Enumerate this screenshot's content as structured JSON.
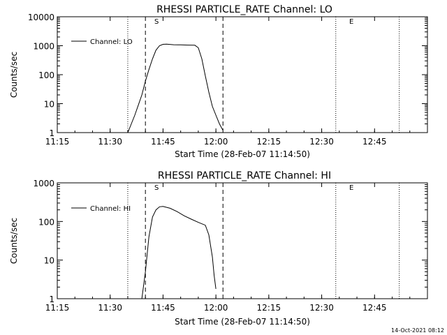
{
  "stamp": "14-Oct-2021 08:12",
  "chart_data": [
    {
      "type": "line",
      "title": "RHESSI PARTICLE_RATE Channel: LO",
      "xlabel": "Start Time (28-Feb-07 11:14:50)",
      "ylabel": "Counts/sec",
      "yscale": "log",
      "ylim": [
        1,
        10000
      ],
      "xlim": [
        "11:15",
        "13:00"
      ],
      "x_ticks": [
        "11:15",
        "11:30",
        "11:45",
        "12:00",
        "12:15",
        "12:30",
        "12:45"
      ],
      "y_ticks": [
        "1",
        "10",
        "100",
        "1000",
        "10000"
      ],
      "legend": {
        "label": "Channel: LO",
        "position": "top-left"
      },
      "start_marker": {
        "label": "S",
        "time": "11:40"
      },
      "end_marker": {
        "label": "E",
        "time": "12:34"
      },
      "dashed_lines": [
        "11:40",
        "12:02"
      ],
      "dotted_lines": [
        "11:35",
        "12:34",
        "12:52"
      ],
      "series": [
        {
          "name": "Channel: LO",
          "points": [
            [
              "11:35",
              1
            ],
            [
              "11:36",
              2
            ],
            [
              "11:37",
              4
            ],
            [
              "11:38",
              9
            ],
            [
              "11:39",
              20
            ],
            [
              "11:40",
              60
            ],
            [
              "11:41",
              150
            ],
            [
              "11:42",
              350
            ],
            [
              "11:43",
              700
            ],
            [
              "11:44",
              1000
            ],
            [
              "11:45",
              1120
            ],
            [
              "11:46",
              1130
            ],
            [
              "11:48",
              1080
            ],
            [
              "11:50",
              1070
            ],
            [
              "11:52",
              1050
            ],
            [
              "11:54",
              1040
            ],
            [
              "11:55",
              850
            ],
            [
              "11:56",
              350
            ],
            [
              "11:57",
              90
            ],
            [
              "11:58",
              25
            ],
            [
              "11:59",
              8
            ],
            [
              "12:00",
              4
            ],
            [
              "12:01",
              2
            ],
            [
              "12:02",
              1.2
            ]
          ]
        }
      ]
    },
    {
      "type": "line",
      "title": "RHESSI PARTICLE_RATE Channel: HI",
      "xlabel": "Start Time (28-Feb-07 11:14:50)",
      "ylabel": "Counts/sec",
      "yscale": "log",
      "ylim": [
        1,
        1000
      ],
      "xlim": [
        "11:15",
        "13:00"
      ],
      "x_ticks": [
        "11:15",
        "11:30",
        "11:45",
        "12:00",
        "12:15",
        "12:30",
        "12:45"
      ],
      "y_ticks": [
        "1",
        "10",
        "100",
        "1000"
      ],
      "legend": {
        "label": "Channel: HI",
        "position": "top-left"
      },
      "start_marker": {
        "label": "S",
        "time": "11:40"
      },
      "end_marker": {
        "label": "E",
        "time": "12:34"
      },
      "dashed_lines": [
        "11:40",
        "12:02"
      ],
      "dotted_lines": [
        "11:35",
        "12:34",
        "12:52"
      ],
      "series": [
        {
          "name": "Channel: HI",
          "points": [
            [
              "11:39",
              1
            ],
            [
              "11:40",
              5
            ],
            [
              "11:41",
              40
            ],
            [
              "11:42",
              130
            ],
            [
              "11:43",
              200
            ],
            [
              "11:44",
              240
            ],
            [
              "11:45",
              245
            ],
            [
              "11:47",
              220
            ],
            [
              "11:49",
              180
            ],
            [
              "11:51",
              140
            ],
            [
              "11:53",
              115
            ],
            [
              "11:55",
              95
            ],
            [
              "11:57",
              80
            ],
            [
              "11:58",
              45
            ],
            [
              "11:59",
              12
            ],
            [
              "11:59:30",
              4
            ],
            [
              "12:00",
              1.8
            ]
          ]
        }
      ]
    }
  ]
}
